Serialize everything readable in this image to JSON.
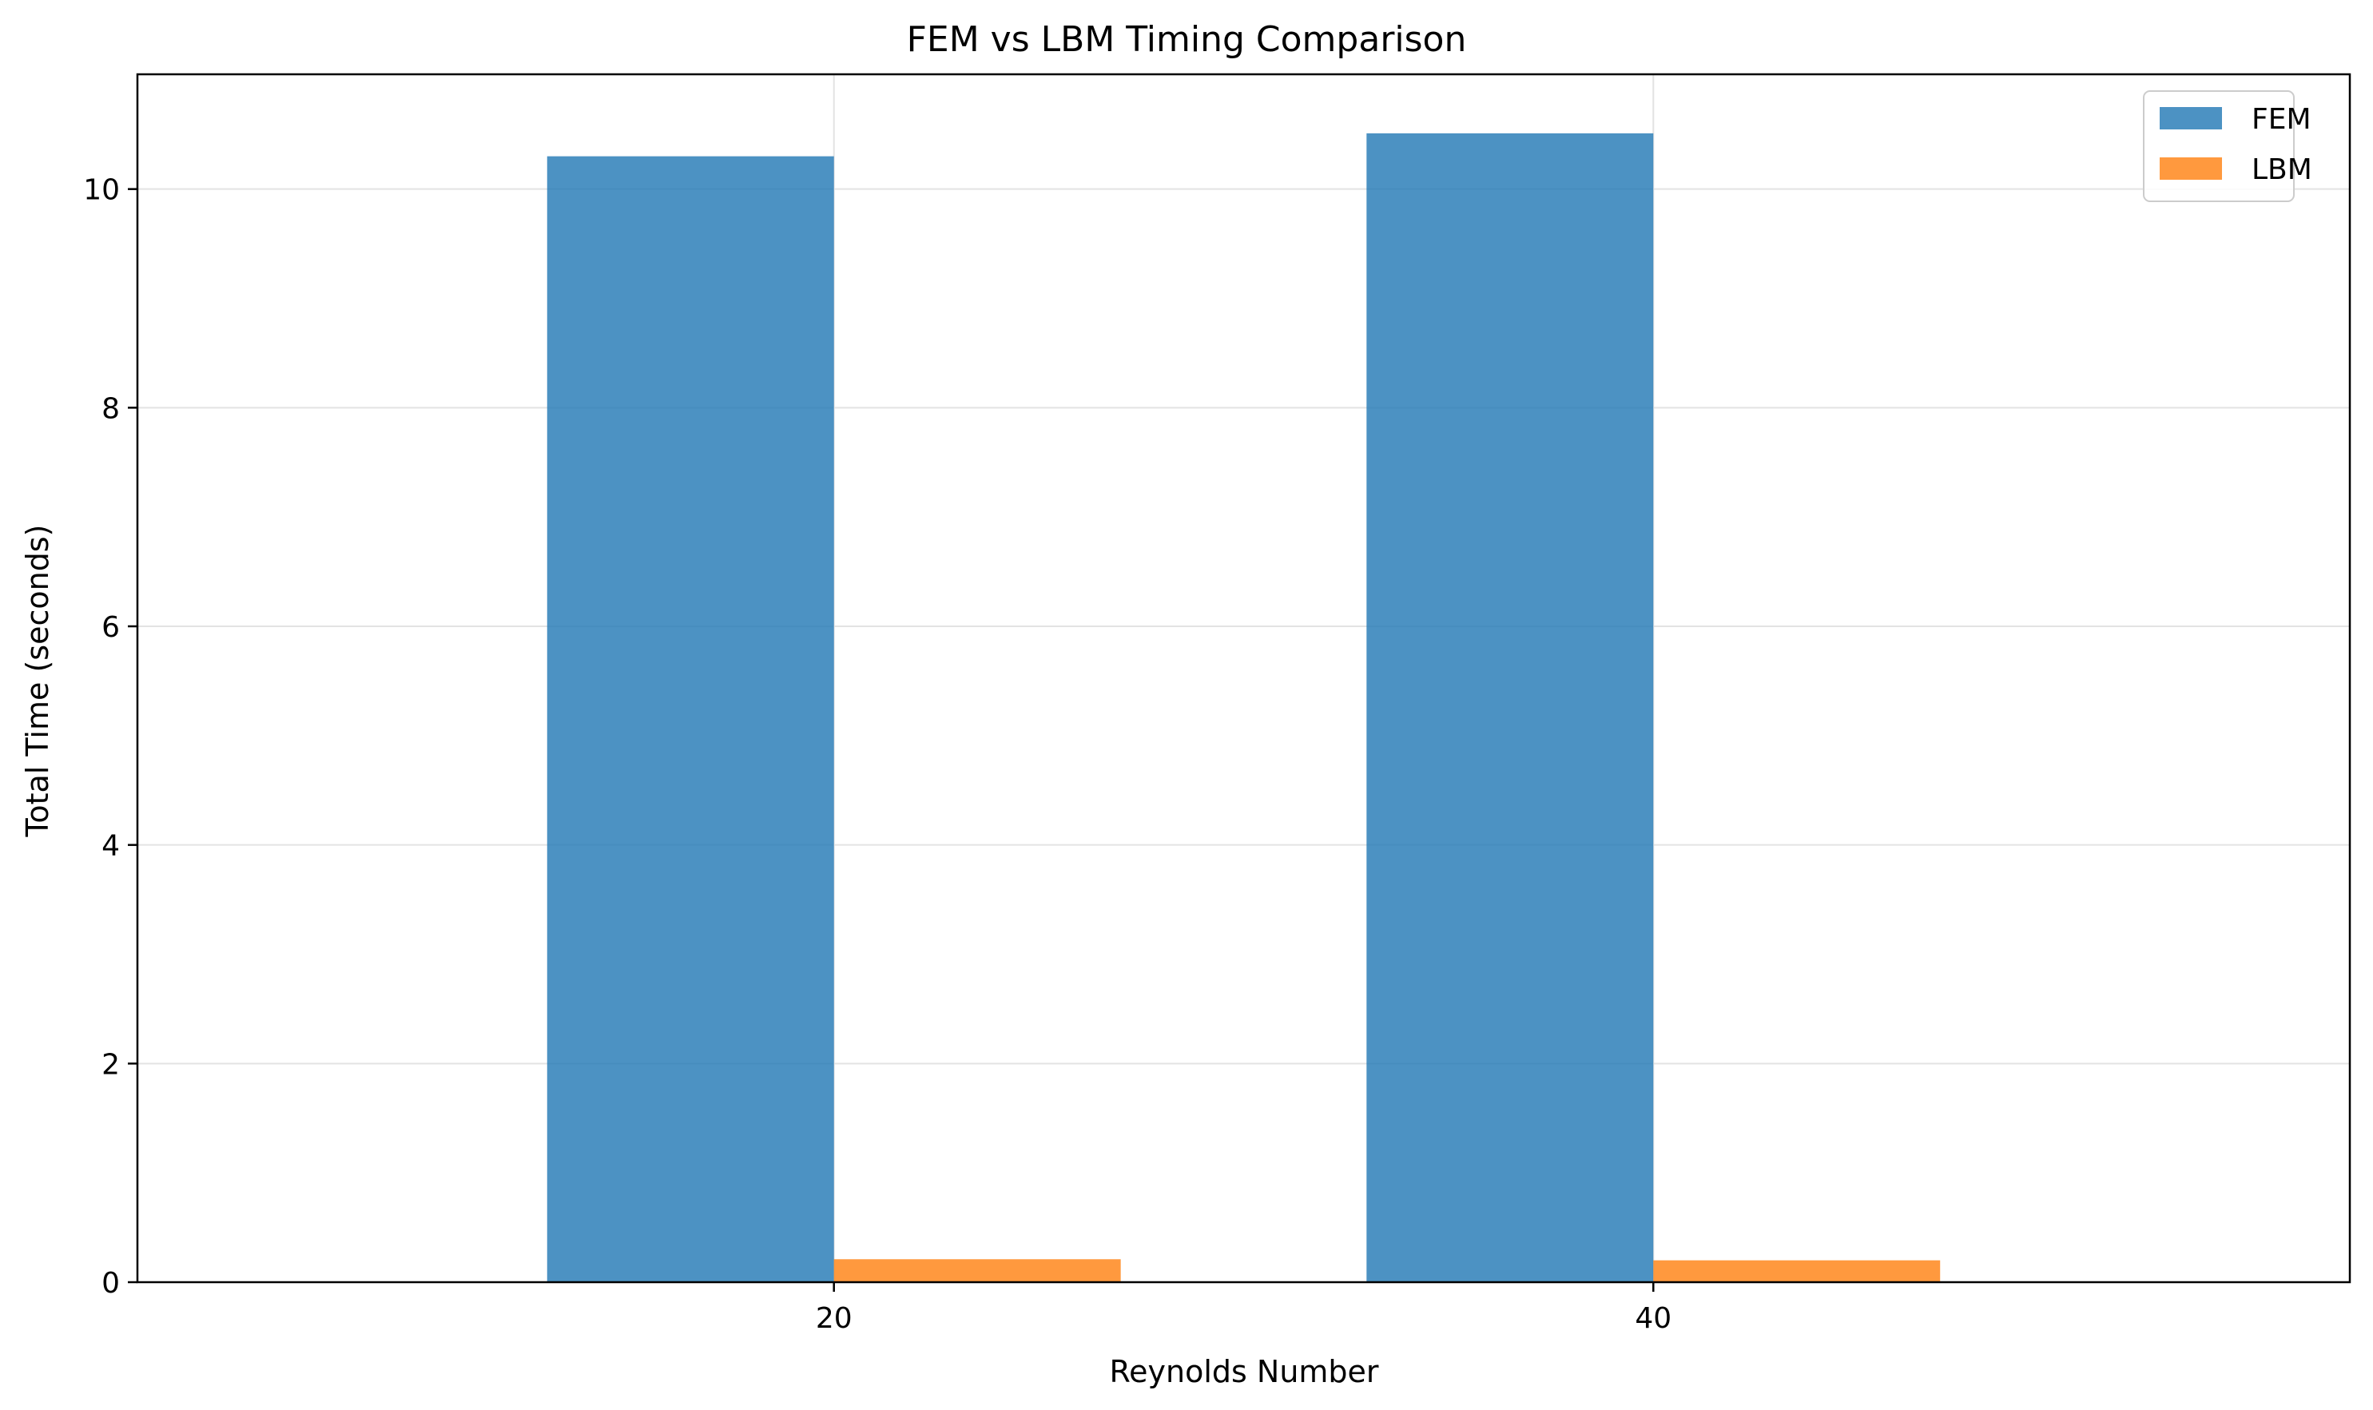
{
  "chart_data": {
    "type": "bar",
    "title": "FEM vs LBM Timing Comparison",
    "xlabel": "Reynolds Number",
    "ylabel": "Total Time (seconds)",
    "categories": [
      "20",
      "40"
    ],
    "series": [
      {
        "name": "FEM",
        "values": [
          10.3,
          10.51
        ],
        "color": "#1f77b4"
      },
      {
        "name": "LBM",
        "values": [
          0.21,
          0.2
        ],
        "color": "#ff7f0e"
      }
    ],
    "ylim": [
      0,
      11.05
    ],
    "yticks": [
      0,
      2,
      4,
      6,
      8,
      10
    ],
    "grid": true,
    "legend_position": "top-right"
  }
}
